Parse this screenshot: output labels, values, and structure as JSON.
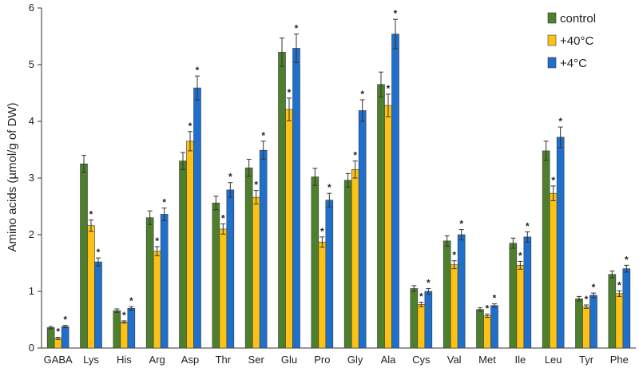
{
  "chart_data": {
    "type": "bar",
    "ylabel": "Amino acids (µmol/g of DW)",
    "xlabel": "",
    "ylim": [
      0,
      6
    ],
    "yticks": [
      0,
      1,
      2,
      3,
      4,
      5,
      6
    ],
    "grid": false,
    "legend_position": "top-right",
    "categories": [
      "GABA",
      "Lys",
      "His",
      "Arg",
      "Asp",
      "Thr",
      "Ser",
      "Glu",
      "Pro",
      "Gly",
      "Ala",
      "Cys",
      "Val",
      "Met",
      "Ile",
      "Leu",
      "Tyr",
      "Phe"
    ],
    "significance_marker": "*",
    "series": [
      {
        "name": "control",
        "color": "#4e7f2c",
        "values": [
          0.36,
          3.25,
          0.66,
          2.3,
          3.3,
          2.56,
          3.18,
          5.22,
          3.02,
          2.96,
          4.65,
          1.05,
          1.89,
          0.68,
          1.85,
          3.48,
          0.87,
          1.3
        ],
        "errors": [
          0.02,
          0.15,
          0.03,
          0.12,
          0.15,
          0.12,
          0.15,
          0.25,
          0.15,
          0.12,
          0.22,
          0.05,
          0.09,
          0.03,
          0.09,
          0.17,
          0.04,
          0.06
        ],
        "significant": [
          false,
          false,
          false,
          false,
          false,
          false,
          false,
          false,
          false,
          false,
          false,
          false,
          false,
          false,
          false,
          false,
          false,
          false
        ]
      },
      {
        "name": "+40°C",
        "color": "#fcc316",
        "values": [
          0.17,
          2.16,
          0.46,
          1.71,
          3.65,
          2.1,
          2.66,
          4.21,
          1.87,
          3.15,
          4.28,
          0.77,
          1.47,
          0.57,
          1.46,
          2.73,
          0.73,
          0.96
        ],
        "errors": [
          0.02,
          0.1,
          0.02,
          0.08,
          0.17,
          0.09,
          0.12,
          0.2,
          0.09,
          0.15,
          0.2,
          0.04,
          0.07,
          0.03,
          0.07,
          0.13,
          0.03,
          0.05
        ],
        "significant": [
          true,
          true,
          true,
          true,
          true,
          true,
          true,
          true,
          true,
          true,
          true,
          true,
          true,
          true,
          true,
          true,
          true,
          true
        ]
      },
      {
        "name": "+4°C",
        "color": "#1f6fcc",
        "values": [
          0.38,
          1.52,
          0.7,
          2.36,
          4.59,
          2.79,
          3.49,
          5.29,
          2.61,
          4.19,
          5.54,
          1.0,
          2.0,
          0.75,
          1.96,
          3.72,
          0.93,
          1.4
        ],
        "errors": [
          0.02,
          0.07,
          0.03,
          0.11,
          0.21,
          0.13,
          0.16,
          0.25,
          0.12,
          0.19,
          0.26,
          0.05,
          0.09,
          0.03,
          0.09,
          0.18,
          0.04,
          0.06
        ],
        "significant": [
          true,
          true,
          true,
          true,
          true,
          true,
          true,
          true,
          true,
          true,
          true,
          true,
          true,
          true,
          true,
          true,
          true,
          true
        ]
      }
    ]
  }
}
